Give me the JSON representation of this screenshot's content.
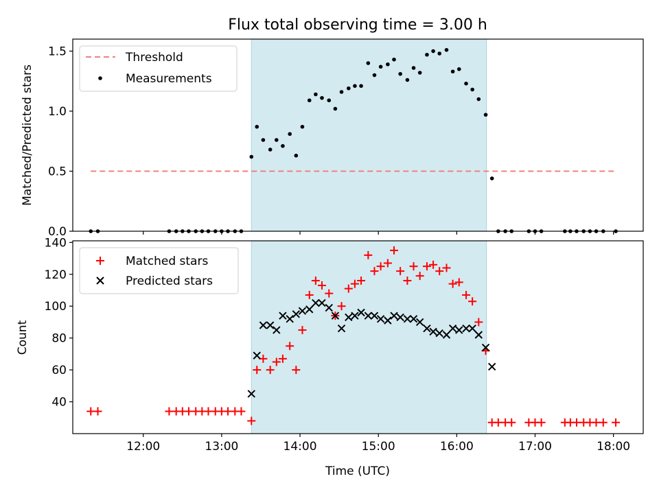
{
  "chart_data": [
    {
      "type": "scatter",
      "title": "Flux total observing time = 3.00 h",
      "xlabel": "",
      "ylabel": "Matched/Predicted stars",
      "xlim": [
        11.1,
        18.38
      ],
      "ylim": [
        0,
        1.6
      ],
      "yticks": [
        "0.0",
        "0.5",
        "1.0",
        "1.5"
      ],
      "shaded_region": {
        "x0": 13.38,
        "x1": 16.38,
        "color": "#d4eaf1"
      },
      "grid": false,
      "legend": "upper-left",
      "threshold": {
        "name": "Threshold",
        "value": 0.5,
        "x_range": [
          11.33,
          18.05
        ],
        "color": "#f08080"
      },
      "series": [
        {
          "name": "Measurements",
          "color": "#000000",
          "x": [
            11.33,
            11.42,
            12.33,
            12.42,
            12.5,
            12.58,
            12.67,
            12.75,
            12.83,
            12.92,
            13.0,
            13.08,
            13.17,
            13.25,
            13.38,
            13.45,
            13.53,
            13.62,
            13.7,
            13.78,
            13.87,
            13.95,
            14.03,
            14.12,
            14.2,
            14.28,
            14.37,
            14.45,
            14.53,
            14.62,
            14.7,
            14.78,
            14.87,
            14.95,
            15.03,
            15.12,
            15.2,
            15.28,
            15.37,
            15.45,
            15.53,
            15.62,
            15.7,
            15.78,
            15.87,
            15.95,
            16.03,
            16.12,
            16.2,
            16.28,
            16.37,
            16.45,
            16.53,
            16.62,
            16.7,
            16.92,
            17.0,
            17.08,
            17.38,
            17.45,
            17.53,
            17.62,
            17.7,
            17.78,
            17.87,
            18.03
          ],
          "y": [
            0,
            0,
            0,
            0,
            0,
            0,
            0,
            0,
            0,
            0,
            0,
            0,
            0,
            0,
            0.62,
            0.87,
            0.76,
            0.68,
            0.76,
            0.71,
            0.81,
            0.63,
            0.87,
            1.09,
            1.14,
            1.11,
            1.09,
            1.02,
            1.16,
            1.19,
            1.21,
            1.21,
            1.4,
            1.3,
            1.37,
            1.39,
            1.43,
            1.31,
            1.26,
            1.36,
            1.32,
            1.47,
            1.5,
            1.48,
            1.51,
            1.33,
            1.35,
            1.23,
            1.18,
            1.1,
            0.97,
            0.44,
            0,
            0,
            0,
            0,
            0,
            0,
            0,
            0,
            0,
            0,
            0,
            0,
            0,
            0
          ]
        }
      ]
    },
    {
      "type": "scatter",
      "title": "",
      "xlabel": "Time (UTC)",
      "ylabel": "Count",
      "xlim": [
        11.1,
        18.38
      ],
      "ylim": [
        20,
        141
      ],
      "xticks": [
        {
          "v": 12,
          "label": "12:00"
        },
        {
          "v": 13,
          "label": "13:00"
        },
        {
          "v": 14,
          "label": "14:00"
        },
        {
          "v": 15,
          "label": "15:00"
        },
        {
          "v": 16,
          "label": "16:00"
        },
        {
          "v": 17,
          "label": "17:00"
        },
        {
          "v": 18,
          "label": "18:00"
        }
      ],
      "yticks": [
        "40",
        "60",
        "80",
        "100",
        "120",
        "140"
      ],
      "shaded_region": {
        "x0": 13.38,
        "x1": 16.38,
        "color": "#d4eaf1"
      },
      "grid": false,
      "legend": "upper-left",
      "series": [
        {
          "name": "Matched stars",
          "marker": "plus",
          "color": "#ff0000",
          "x": [
            11.33,
            11.42,
            12.33,
            12.42,
            12.5,
            12.58,
            12.67,
            12.75,
            12.83,
            12.92,
            13.0,
            13.08,
            13.17,
            13.25,
            13.38,
            13.45,
            13.53,
            13.62,
            13.7,
            13.78,
            13.87,
            13.95,
            14.03,
            14.12,
            14.2,
            14.28,
            14.37,
            14.45,
            14.53,
            14.62,
            14.7,
            14.78,
            14.87,
            14.95,
            15.03,
            15.12,
            15.2,
            15.28,
            15.37,
            15.45,
            15.53,
            15.62,
            15.7,
            15.78,
            15.87,
            15.95,
            16.03,
            16.12,
            16.2,
            16.28,
            16.37,
            16.45,
            16.53,
            16.62,
            16.7,
            16.92,
            17.0,
            17.08,
            17.38,
            17.45,
            17.53,
            17.62,
            17.7,
            17.78,
            17.87,
            18.03
          ],
          "y": [
            34,
            34,
            34,
            34,
            34,
            34,
            34,
            34,
            34,
            34,
            34,
            34,
            34,
            34,
            28,
            60,
            67,
            60,
            65,
            67,
            75,
            60,
            85,
            107,
            116,
            113,
            108,
            94,
            100,
            111,
            114,
            116,
            132,
            122,
            125,
            127,
            135,
            122,
            116,
            125,
            119,
            125,
            126,
            122,
            124,
            114,
            115,
            107,
            103,
            90,
            72,
            27,
            27,
            27,
            27,
            27,
            27,
            27,
            27,
            27,
            27,
            27,
            27,
            27,
            27,
            27
          ]
        },
        {
          "name": "Predicted stars",
          "marker": "x",
          "color": "#000000",
          "x": [
            13.38,
            13.45,
            13.53,
            13.62,
            13.7,
            13.78,
            13.87,
            13.95,
            14.03,
            14.12,
            14.2,
            14.28,
            14.37,
            14.45,
            14.53,
            14.62,
            14.7,
            14.78,
            14.87,
            14.95,
            15.03,
            15.12,
            15.2,
            15.28,
            15.37,
            15.45,
            15.53,
            15.62,
            15.7,
            15.78,
            15.87,
            15.95,
            16.03,
            16.12,
            16.2,
            16.28,
            16.37,
            16.45
          ],
          "y": [
            45,
            69,
            88,
            88,
            85,
            94,
            92,
            95,
            97,
            98,
            102,
            102,
            99,
            94,
            86,
            93,
            94,
            96,
            94,
            94,
            92,
            91,
            94,
            93,
            92,
            92,
            90,
            86,
            84,
            83,
            82,
            86,
            85,
            86,
            86,
            82,
            74,
            62
          ]
        }
      ]
    }
  ]
}
